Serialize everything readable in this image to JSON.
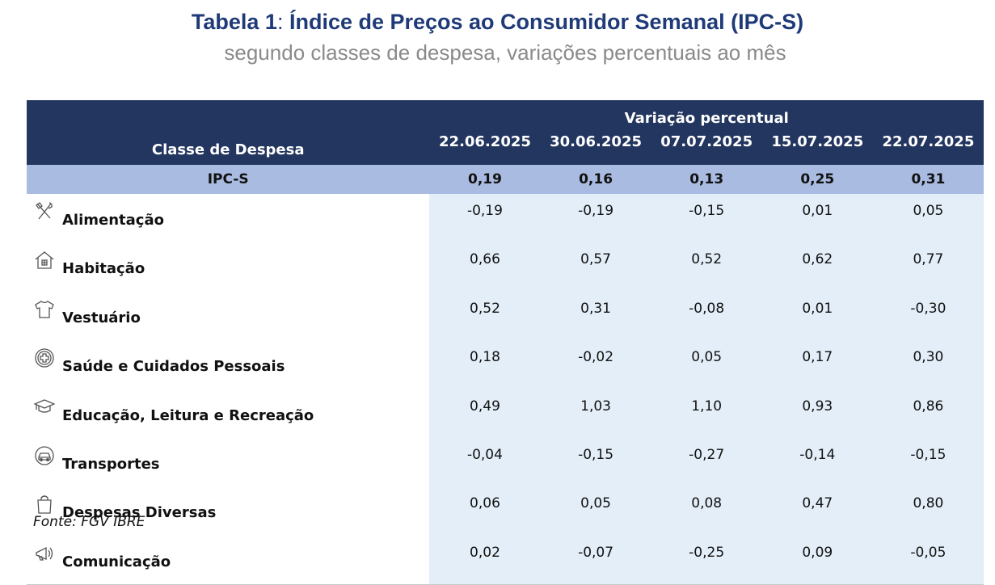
{
  "title": {
    "prefix": "Tabela 1",
    "separator": ":",
    "text": " Índice de Preços ao Consumidor Semanal (IPC-S)"
  },
  "subtitle": "segundo classes de despesa, variações percentuais ao mês",
  "table": {
    "group_header": "Variação percentual",
    "class_header": "Classe de Despesa",
    "dates": [
      "22.06.2025",
      "30.06.2025",
      "07.07.2025",
      "15.07.2025",
      "22.07.2025"
    ],
    "summary": {
      "label": "IPC-S",
      "values": [
        "0,19",
        "0,16",
        "0,13",
        "0,25",
        "0,31"
      ]
    },
    "rows": [
      {
        "icon": "fork-knife-icon",
        "label": "Alimentação",
        "values": [
          "-0,19",
          "-0,19",
          "-0,15",
          "0,01",
          "0,05"
        ]
      },
      {
        "icon": "house-icon",
        "label": "Habitação",
        "values": [
          "0,66",
          "0,57",
          "0,52",
          "0,62",
          "0,77"
        ]
      },
      {
        "icon": "shirt-icon",
        "label": "Vestuário",
        "values": [
          "0,52",
          "0,31",
          "-0,08",
          "0,01",
          "-0,30"
        ]
      },
      {
        "icon": "health-cross-icon",
        "label": "Saúde e Cuidados Pessoais",
        "values": [
          "0,18",
          "-0,02",
          "0,05",
          "0,17",
          "0,30"
        ]
      },
      {
        "icon": "graduation-cap-icon",
        "label": "Educação, Leitura e Recreação",
        "values": [
          "0,49",
          "1,03",
          "1,10",
          "0,93",
          "0,86"
        ]
      },
      {
        "icon": "car-icon",
        "label": "Transportes",
        "values": [
          "-0,04",
          "-0,15",
          "-0,27",
          "-0,14",
          "-0,15"
        ]
      },
      {
        "icon": "shopping-bag-icon",
        "label": "Despesas Diversas",
        "values": [
          "0,06",
          "0,05",
          "0,08",
          "0,47",
          "0,80"
        ]
      },
      {
        "icon": "megaphone-icon",
        "label": "Comunicação",
        "values": [
          "0,02",
          "-0,07",
          "-0,25",
          "0,09",
          "-0,05"
        ]
      }
    ]
  },
  "source": "Fonte: FGV IBRE",
  "colors": {
    "title": "#1f3a78",
    "header_bg": "#23365f",
    "summary_bg": "#a9bbe0",
    "value_bg": "#e3eef8"
  }
}
